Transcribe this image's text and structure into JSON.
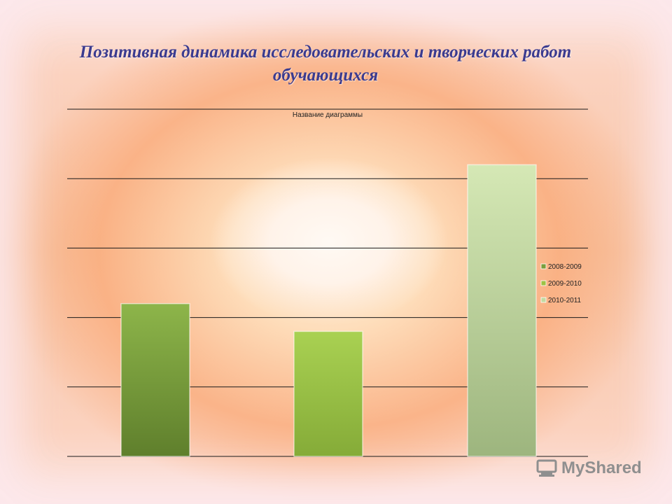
{
  "slide": {
    "title_line1": "Позитивная динамика исследовательских и творческих работ",
    "title_line2": "обучающихся"
  },
  "chart_data": {
    "type": "bar",
    "title": "Название диаграммы",
    "ylim": [
      0,
      5
    ],
    "grid": true,
    "legend_position": "right",
    "series": [
      {
        "name": "2008-2009",
        "values": [
          2.2
        ],
        "color": "#7a9e3c"
      },
      {
        "name": "2009-2010",
        "values": [
          1.8
        ],
        "color": "#9dc245"
      },
      {
        "name": "2010-2011",
        "values": [
          4.2
        ],
        "color": "#c3d9a0"
      }
    ]
  },
  "watermark": {
    "text": "MyShared"
  }
}
